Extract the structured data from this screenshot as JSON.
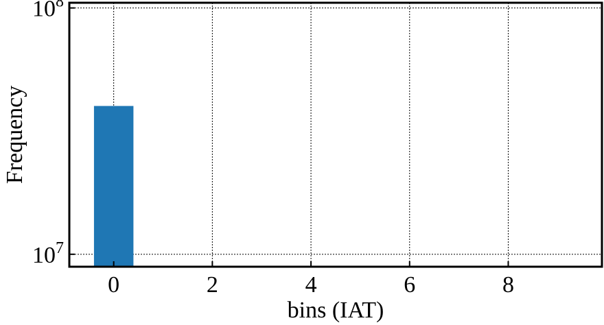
{
  "chart_data": {
    "type": "bar",
    "title": "",
    "xlabel": "bins (IAT)",
    "ylabel": "Frequency",
    "x": [
      0
    ],
    "values": [
      40000000
    ],
    "bar_width": 0.8,
    "xlim": [
      -0.9,
      9.9
    ],
    "ylim": [
      8900000,
      105000000
    ],
    "yscale": "log",
    "xticks": [
      0,
      2,
      4,
      6,
      8
    ],
    "yticks": [
      {
        "value": 10000000,
        "base": "10",
        "exp": "7"
      },
      {
        "value": 100000000,
        "base": "10",
        "exp": "8"
      }
    ],
    "grid": true,
    "bar_color": "#1f77b4"
  }
}
